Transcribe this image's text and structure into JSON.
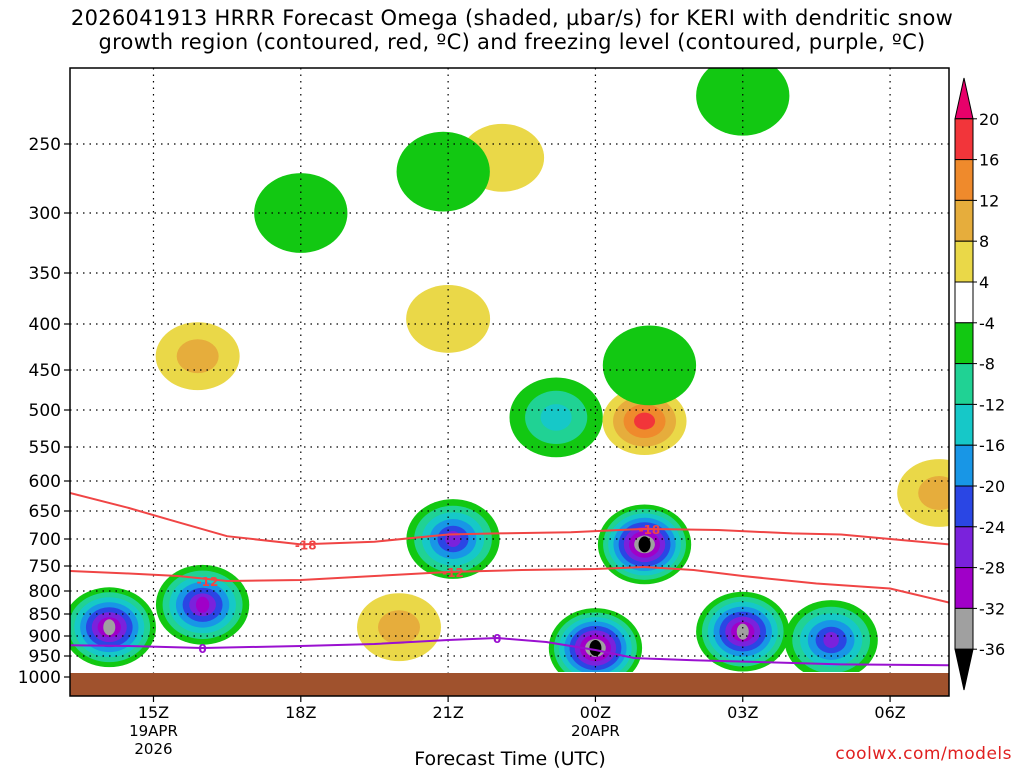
{
  "title": {
    "line1": "2026041913 HRRR Forecast Omega (shaded, µbar/s) for KERI with dendritic snow",
    "line2": "growth region (contoured, red, ºC) and freezing level (contoured, purple, ºC)"
  },
  "credit": "coolwx.com/models",
  "chart_data": {
    "type": "heatmap",
    "title": "2026041913 HRRR Forecast Omega (shaded, µbar/s) for KERI with dendritic snow growth region (contoured, red, ºC) and freezing level (contoured, purple, ºC)",
    "xlabel": "Forecast Time (UTC)",
    "ylabel": "",
    "x_range_hours": [
      13.3,
      31.2
    ],
    "x_ticks": [
      {
        "hour": 15,
        "label": "15Z",
        "sub1": "19APR",
        "sub2": "2026"
      },
      {
        "hour": 18,
        "label": "18Z",
        "sub1": "",
        "sub2": ""
      },
      {
        "hour": 21,
        "label": "21Z",
        "sub1": "",
        "sub2": ""
      },
      {
        "hour": 24,
        "label": "00Z",
        "sub1": "20APR",
        "sub2": ""
      },
      {
        "hour": 27,
        "label": "03Z",
        "sub1": "",
        "sub2": ""
      },
      {
        "hour": 30,
        "label": "06Z",
        "sub1": "",
        "sub2": ""
      }
    ],
    "y_range_hpa": [
      1000,
      200
    ],
    "y_ticks": [
      250,
      300,
      350,
      400,
      450,
      500,
      550,
      600,
      650,
      700,
      750,
      800,
      850,
      900,
      950,
      1000
    ],
    "colorbar": {
      "labels": [
        "20",
        "16",
        "12",
        "8",
        "4",
        "-4",
        "-8",
        "-12",
        "-16",
        "-20",
        "-24",
        "-28",
        "-32",
        "-36"
      ],
      "bins": [
        {
          "lo": 20,
          "hi": null,
          "color": "#e8006a"
        },
        {
          "lo": 16,
          "hi": 20,
          "color": "#f2353a"
        },
        {
          "lo": 12,
          "hi": 16,
          "color": "#ef8a2c"
        },
        {
          "lo": 8,
          "hi": 12,
          "color": "#e6ad3c"
        },
        {
          "lo": 4,
          "hi": 8,
          "color": "#ead848"
        },
        {
          "lo": -4,
          "hi": 4,
          "color": "#ffffff"
        },
        {
          "lo": -8,
          "hi": -4,
          "color": "#12c812"
        },
        {
          "lo": -12,
          "hi": -8,
          "color": "#20d294"
        },
        {
          "lo": -16,
          "hi": -12,
          "color": "#16c8c8"
        },
        {
          "lo": -20,
          "hi": -16,
          "color": "#1896e6"
        },
        {
          "lo": -24,
          "hi": -20,
          "color": "#2a46e4"
        },
        {
          "lo": -28,
          "hi": -24,
          "color": "#7a22dc"
        },
        {
          "lo": -32,
          "hi": -28,
          "color": "#a000c8"
        },
        {
          "lo": -36,
          "hi": -32,
          "color": "#a0a0a0"
        },
        {
          "lo": null,
          "hi": -36,
          "color": "#000000"
        }
      ]
    },
    "omega_features": [
      {
        "hour": 14.1,
        "hpa": 880,
        "peak": -34
      },
      {
        "hour": 16.0,
        "hpa": 830,
        "peak": -30
      },
      {
        "hour": 21.1,
        "hpa": 700,
        "peak": -28
      },
      {
        "hour": 24.0,
        "hpa": 930,
        "peak": -38
      },
      {
        "hour": 25.0,
        "hpa": 710,
        "peak": -38
      },
      {
        "hour": 27.0,
        "hpa": 890,
        "peak": -34
      },
      {
        "hour": 28.8,
        "hpa": 910,
        "peak": -26
      },
      {
        "hour": 23.2,
        "hpa": 510,
        "peak": -14
      },
      {
        "hour": 25.0,
        "hpa": 515,
        "peak": 18
      },
      {
        "hour": 20.0,
        "hpa": 880,
        "peak": 13
      },
      {
        "hour": 15.9,
        "hpa": 435,
        "peak": 10
      },
      {
        "hour": 21.0,
        "hpa": 395,
        "peak": 9
      },
      {
        "hour": 22.1,
        "hpa": 260,
        "peak": 9
      },
      {
        "hour": 31.0,
        "hpa": 620,
        "peak": 11
      },
      {
        "hour": 18.0,
        "hpa": 300,
        "peak": -7
      },
      {
        "hour": 20.9,
        "hpa": 270,
        "peak": -7
      },
      {
        "hour": 27.0,
        "hpa": 215,
        "peak": -7
      },
      {
        "hour": 25.1,
        "hpa": 445,
        "peak": -7
      }
    ],
    "contours": [
      {
        "name": "DGZ -18°C",
        "label": "-18",
        "color": "#f04545",
        "points": [
          [
            13.3,
            620
          ],
          [
            14.5,
            645
          ],
          [
            15.5,
            670
          ],
          [
            16.5,
            695
          ],
          [
            18.0,
            710
          ],
          [
            19.5,
            705
          ],
          [
            21.0,
            692
          ],
          [
            22.0,
            690
          ],
          [
            23.5,
            688
          ],
          [
            25.0,
            682
          ],
          [
            26.5,
            684
          ],
          [
            28.0,
            690
          ],
          [
            29.0,
            692
          ],
          [
            30.0,
            700
          ],
          [
            31.2,
            710
          ]
        ],
        "label_at": [
          [
            18.1,
            710
          ],
          [
            25.1,
            682
          ]
        ]
      },
      {
        "name": "DGZ -12°C",
        "label": "-12",
        "color": "#f04545",
        "points": [
          [
            13.3,
            760
          ],
          [
            14.5,
            765
          ],
          [
            15.5,
            770
          ],
          [
            16.5,
            780
          ],
          [
            18.0,
            778
          ],
          [
            19.5,
            770
          ],
          [
            21.0,
            762
          ],
          [
            22.5,
            758
          ],
          [
            24.0,
            756
          ],
          [
            25.0,
            752
          ],
          [
            26.0,
            758
          ],
          [
            27.0,
            770
          ],
          [
            28.5,
            785
          ],
          [
            30.0,
            795
          ],
          [
            31.2,
            825
          ]
        ],
        "label_at": [
          [
            16.1,
            780
          ],
          [
            21.1,
            762
          ]
        ]
      },
      {
        "name": "Freezing level 0°C",
        "label": "0",
        "color": "#9a10d0",
        "points": [
          [
            13.3,
            923
          ],
          [
            14.5,
            925
          ],
          [
            16.0,
            930
          ],
          [
            18.0,
            925
          ],
          [
            19.5,
            920
          ],
          [
            21.0,
            910
          ],
          [
            22.0,
            905
          ],
          [
            23.0,
            915
          ],
          [
            24.0,
            935
          ],
          [
            24.8,
            955
          ],
          [
            26.0,
            960
          ],
          [
            27.5,
            965
          ],
          [
            29.0,
            970
          ],
          [
            31.2,
            972
          ]
        ],
        "label_at": [
          [
            16.0,
            930
          ],
          [
            22.0,
            905
          ]
        ]
      }
    ]
  }
}
